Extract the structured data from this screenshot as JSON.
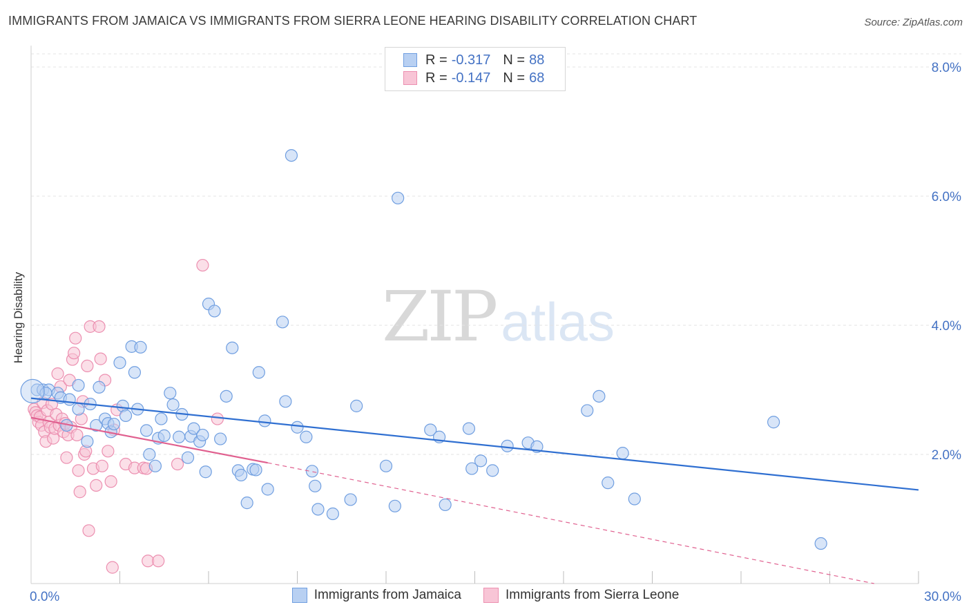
{
  "title": "IMMIGRANTS FROM JAMAICA VS IMMIGRANTS FROM SIERRA LEONE HEARING DISABILITY CORRELATION CHART",
  "source": "Source: ZipAtlas.com",
  "watermark": {
    "zip": "ZIP",
    "atlas": "atlas"
  },
  "legend": [
    {
      "r_label": "R =",
      "r_value": "-0.317",
      "n_label": "N =",
      "n_value": "88",
      "color": "#6f9ee0",
      "fill": "#b8d0f2"
    },
    {
      "r_label": "R =",
      "r_value": "-0.147",
      "n_label": "N =",
      "n_value": "68",
      "color": "#ec8fb0",
      "fill": "#f8c5d6"
    }
  ],
  "bottom_legend": [
    "Immigrants from Jamaica",
    "Immigrants from Sierra Leone"
  ],
  "chart_data": {
    "type": "scatter",
    "ylabel": "Hearing Disability",
    "xlim": [
      0,
      30
    ],
    "ylim": [
      0,
      8.5
    ],
    "x_ticks": [
      {
        "v": 0,
        "label": "0.0%"
      },
      {
        "v": 30,
        "label": "30.0%"
      }
    ],
    "y_ticks": [
      {
        "v": 2,
        "label": "2.0%"
      },
      {
        "v": 4,
        "label": "4.0%"
      },
      {
        "v": 6,
        "label": "6.0%"
      },
      {
        "v": 8,
        "label": "8.0%"
      }
    ],
    "x_minor_ticks": [
      3,
      6,
      9,
      12,
      15,
      18,
      21,
      24,
      27,
      30
    ],
    "grid": true,
    "series": [
      {
        "name": "Immigrants from Jamaica",
        "color": "#6f9ee0",
        "fill": "#b8d0f2",
        "trend_color": "#2f6fd1",
        "trend": {
          "x0": 0,
          "y0": 2.87,
          "x1": 30,
          "y1": 1.45
        },
        "points": [
          [
            0.2,
            3.0
          ],
          [
            0.4,
            3.0
          ],
          [
            0.6,
            3.0
          ],
          [
            0.9,
            2.95
          ],
          [
            0.5,
            2.95
          ],
          [
            1.0,
            2.88
          ],
          [
            1.3,
            2.85
          ],
          [
            1.6,
            2.7
          ],
          [
            1.2,
            2.45
          ],
          [
            1.6,
            3.07
          ],
          [
            2.0,
            2.78
          ],
          [
            1.9,
            2.2
          ],
          [
            2.2,
            2.45
          ],
          [
            2.3,
            3.04
          ],
          [
            2.5,
            2.55
          ],
          [
            2.6,
            2.48
          ],
          [
            2.7,
            2.35
          ],
          [
            2.8,
            2.47
          ],
          [
            3.0,
            3.42
          ],
          [
            3.1,
            2.75
          ],
          [
            3.2,
            2.6
          ],
          [
            3.4,
            3.67
          ],
          [
            3.5,
            3.27
          ],
          [
            3.6,
            2.7
          ],
          [
            3.7,
            3.66
          ],
          [
            3.9,
            2.37
          ],
          [
            4.0,
            2.0
          ],
          [
            4.2,
            1.82
          ],
          [
            4.3,
            2.25
          ],
          [
            4.4,
            2.55
          ],
          [
            4.5,
            2.29
          ],
          [
            4.7,
            2.95
          ],
          [
            4.8,
            2.77
          ],
          [
            5.0,
            2.27
          ],
          [
            5.1,
            2.62
          ],
          [
            5.3,
            1.95
          ],
          [
            5.4,
            2.28
          ],
          [
            5.5,
            2.4
          ],
          [
            5.7,
            2.2
          ],
          [
            5.8,
            2.3
          ],
          [
            5.9,
            1.73
          ],
          [
            6.0,
            4.33
          ],
          [
            6.2,
            4.22
          ],
          [
            6.4,
            2.24
          ],
          [
            6.6,
            2.9
          ],
          [
            6.8,
            3.65
          ],
          [
            7.0,
            1.75
          ],
          [
            7.1,
            1.68
          ],
          [
            7.3,
            1.25
          ],
          [
            7.5,
            1.77
          ],
          [
            7.6,
            1.76
          ],
          [
            7.7,
            3.27
          ],
          [
            7.9,
            2.52
          ],
          [
            8.0,
            1.46
          ],
          [
            8.5,
            4.05
          ],
          [
            8.6,
            2.82
          ],
          [
            8.8,
            6.63
          ],
          [
            9.0,
            2.42
          ],
          [
            9.3,
            2.27
          ],
          [
            9.5,
            1.74
          ],
          [
            9.6,
            1.51
          ],
          [
            9.7,
            1.15
          ],
          [
            10.2,
            1.08
          ],
          [
            10.8,
            1.3
          ],
          [
            11.0,
            2.75
          ],
          [
            12.0,
            1.82
          ],
          [
            12.3,
            1.2
          ],
          [
            12.4,
            5.97
          ],
          [
            13.5,
            2.38
          ],
          [
            13.8,
            2.27
          ],
          [
            14.0,
            1.22
          ],
          [
            14.8,
            2.4
          ],
          [
            14.9,
            1.78
          ],
          [
            15.2,
            1.9
          ],
          [
            15.6,
            1.75
          ],
          [
            16.1,
            2.13
          ],
          [
            16.8,
            2.18
          ],
          [
            17.1,
            2.12
          ],
          [
            18.8,
            2.68
          ],
          [
            19.2,
            2.9
          ],
          [
            19.5,
            1.56
          ],
          [
            20.0,
            2.02
          ],
          [
            20.4,
            1.31
          ],
          [
            25.1,
            2.5
          ],
          [
            26.7,
            0.62
          ]
        ]
      },
      {
        "name": "Immigrants from Sierra Leone",
        "color": "#ec8fb0",
        "fill": "#f8c5d6",
        "trend_color": "#e0608f",
        "trend": {
          "x0": 0,
          "y0": 2.57,
          "x1": 8,
          "y1": 1.87
        },
        "trend_ext": {
          "x0": 8,
          "y0": 1.87,
          "x1": 28.5,
          "y1": 0.0
        },
        "points": [
          [
            0.1,
            2.7
          ],
          [
            0.15,
            2.65
          ],
          [
            0.2,
            2.6
          ],
          [
            0.25,
            2.5
          ],
          [
            0.3,
            2.58
          ],
          [
            0.35,
            2.45
          ],
          [
            0.4,
            2.8
          ],
          [
            0.45,
            2.35
          ],
          [
            0.5,
            2.2
          ],
          [
            0.55,
            2.68
          ],
          [
            0.6,
            2.5
          ],
          [
            0.65,
            2.42
          ],
          [
            0.7,
            2.78
          ],
          [
            0.75,
            2.25
          ],
          [
            0.8,
            2.4
          ],
          [
            0.85,
            2.62
          ],
          [
            0.9,
            3.25
          ],
          [
            0.95,
            2.45
          ],
          [
            1.0,
            3.05
          ],
          [
            1.05,
            2.55
          ],
          [
            1.1,
            2.35
          ],
          [
            1.15,
            2.48
          ],
          [
            1.2,
            1.95
          ],
          [
            1.25,
            2.3
          ],
          [
            1.3,
            3.15
          ],
          [
            1.35,
            2.42
          ],
          [
            1.4,
            3.47
          ],
          [
            1.45,
            3.57
          ],
          [
            1.5,
            3.8
          ],
          [
            1.55,
            2.3
          ],
          [
            1.6,
            1.75
          ],
          [
            1.65,
            1.42
          ],
          [
            1.7,
            2.55
          ],
          [
            1.75,
            2.82
          ],
          [
            1.8,
            2.0
          ],
          [
            1.85,
            2.05
          ],
          [
            1.9,
            3.37
          ],
          [
            1.95,
            0.82
          ],
          [
            2.0,
            3.98
          ],
          [
            2.1,
            1.78
          ],
          [
            2.2,
            1.52
          ],
          [
            2.3,
            3.98
          ],
          [
            2.35,
            3.48
          ],
          [
            2.4,
            1.82
          ],
          [
            2.5,
            3.15
          ],
          [
            2.6,
            2.05
          ],
          [
            2.7,
            1.58
          ],
          [
            2.75,
            0.25
          ],
          [
            2.8,
            2.38
          ],
          [
            2.9,
            2.69
          ],
          [
            3.2,
            1.85
          ],
          [
            3.5,
            1.79
          ],
          [
            3.8,
            1.79
          ],
          [
            3.9,
            1.78
          ],
          [
            3.95,
            0.35
          ],
          [
            4.3,
            0.35
          ],
          [
            4.95,
            1.85
          ],
          [
            5.8,
            4.93
          ],
          [
            6.3,
            2.55
          ]
        ]
      }
    ]
  }
}
